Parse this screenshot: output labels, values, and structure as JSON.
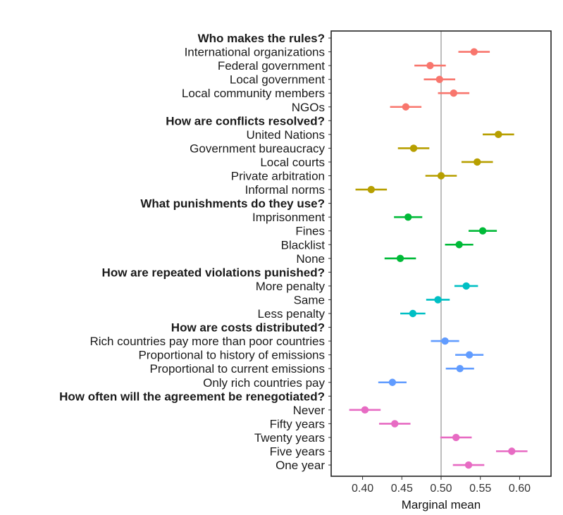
{
  "chart_data": {
    "type": "scatter",
    "xlabel": "Marginal mean",
    "xlim": [
      0.36,
      0.64
    ],
    "xticks": [
      "0.40",
      "0.45",
      "0.50",
      "0.55",
      "0.60"
    ],
    "reference_line": 0.5,
    "grid": false,
    "legend": "none",
    "colors": {
      "rules": "#F8766D",
      "conflicts": "#B79F00",
      "punishments": "#00BA38",
      "violations": "#00BFC4",
      "costs": "#619CFF",
      "renegotiation": "#E76BC3",
      "reference_line": "#bdbdbd"
    },
    "rows": [
      {
        "label": "Who makes the rules?",
        "header": true
      },
      {
        "label": "International organizations",
        "group": "rules",
        "mean": 0.542,
        "lo": 0.522,
        "hi": 0.562
      },
      {
        "label": "Federal government",
        "group": "rules",
        "mean": 0.486,
        "lo": 0.466,
        "hi": 0.506
      },
      {
        "label": "Local government",
        "group": "rules",
        "mean": 0.498,
        "lo": 0.478,
        "hi": 0.518
      },
      {
        "label": "Local community members",
        "group": "rules",
        "mean": 0.516,
        "lo": 0.496,
        "hi": 0.536
      },
      {
        "label": "NGOs",
        "group": "rules",
        "mean": 0.455,
        "lo": 0.435,
        "hi": 0.475
      },
      {
        "label": "How are conflicts resolved?",
        "header": true
      },
      {
        "label": "United Nations",
        "group": "conflicts",
        "mean": 0.573,
        "lo": 0.553,
        "hi": 0.593
      },
      {
        "label": "Government bureaucracy",
        "group": "conflicts",
        "mean": 0.465,
        "lo": 0.445,
        "hi": 0.485
      },
      {
        "label": "Local courts",
        "group": "conflicts",
        "mean": 0.546,
        "lo": 0.526,
        "hi": 0.566
      },
      {
        "label": "Private arbitration",
        "group": "conflicts",
        "mean": 0.5,
        "lo": 0.48,
        "hi": 0.52
      },
      {
        "label": "Informal norms",
        "group": "conflicts",
        "mean": 0.411,
        "lo": 0.391,
        "hi": 0.431
      },
      {
        "label": "What punishments do they use?",
        "header": true
      },
      {
        "label": "Imprisonment",
        "group": "punishments",
        "mean": 0.458,
        "lo": 0.44,
        "hi": 0.476
      },
      {
        "label": "Fines",
        "group": "punishments",
        "mean": 0.553,
        "lo": 0.535,
        "hi": 0.571
      },
      {
        "label": "Blacklist",
        "group": "punishments",
        "mean": 0.523,
        "lo": 0.505,
        "hi": 0.541
      },
      {
        "label": "None",
        "group": "punishments",
        "mean": 0.448,
        "lo": 0.428,
        "hi": 0.468
      },
      {
        "label": "How are repeated violations punished?",
        "header": true
      },
      {
        "label": "More penalty",
        "group": "violations",
        "mean": 0.532,
        "lo": 0.517,
        "hi": 0.547
      },
      {
        "label": "Same",
        "group": "violations",
        "mean": 0.496,
        "lo": 0.481,
        "hi": 0.511
      },
      {
        "label": "Less penalty",
        "group": "violations",
        "mean": 0.464,
        "lo": 0.448,
        "hi": 0.48
      },
      {
        "label": "How are costs distributed?",
        "header": true
      },
      {
        "label": "Rich countries pay more than poor countries",
        "group": "costs",
        "mean": 0.505,
        "lo": 0.487,
        "hi": 0.523
      },
      {
        "label": "Proportional to history of emissions",
        "group": "costs",
        "mean": 0.536,
        "lo": 0.518,
        "hi": 0.554
      },
      {
        "label": "Proportional to current emissions",
        "group": "costs",
        "mean": 0.524,
        "lo": 0.506,
        "hi": 0.542
      },
      {
        "label": "Only rich countries pay",
        "group": "costs",
        "mean": 0.438,
        "lo": 0.42,
        "hi": 0.456
      },
      {
        "label": "How often will the agreement be renegotiated?",
        "header": true
      },
      {
        "label": "Never",
        "group": "renegotiation",
        "mean": 0.403,
        "lo": 0.383,
        "hi": 0.423
      },
      {
        "label": "Fifty years",
        "group": "renegotiation",
        "mean": 0.441,
        "lo": 0.421,
        "hi": 0.461
      },
      {
        "label": "Twenty years",
        "group": "renegotiation",
        "mean": 0.519,
        "lo": 0.499,
        "hi": 0.539
      },
      {
        "label": "Five years",
        "group": "renegotiation",
        "mean": 0.59,
        "lo": 0.57,
        "hi": 0.61
      },
      {
        "label": "One year",
        "group": "renegotiation",
        "mean": 0.535,
        "lo": 0.515,
        "hi": 0.555
      }
    ]
  }
}
